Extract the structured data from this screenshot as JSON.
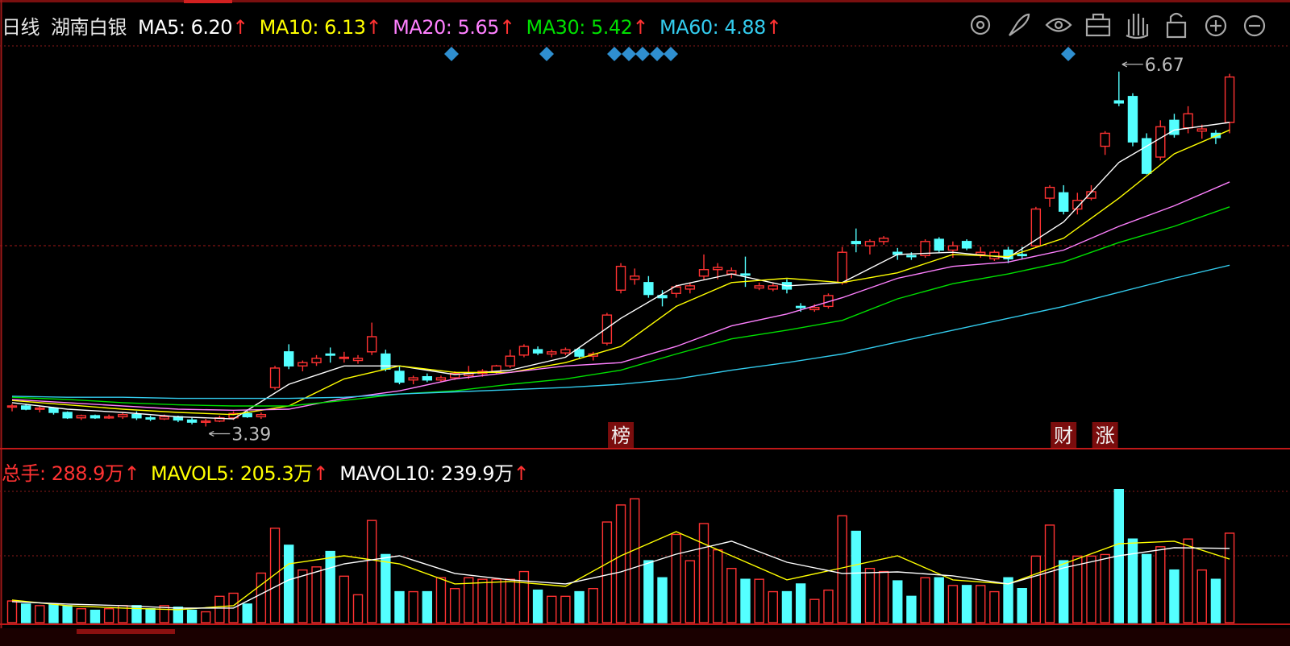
{
  "header": {
    "period": "日线",
    "name": "湖南白银"
  },
  "chart_data": [
    {
      "type": "candlestick",
      "ylim": [
        3.2,
        6.9
      ],
      "up_color": "#ff3232",
      "down_color": "#54ffff",
      "open": [
        3.57,
        3.58,
        3.55,
        3.56,
        3.52,
        3.47,
        3.49,
        3.47,
        3.48,
        3.5,
        3.47,
        3.46,
        3.48,
        3.45,
        3.43,
        3.44,
        3.47,
        3.51,
        3.48,
        3.75,
        4.08,
        3.95,
        3.98,
        4.06,
        4.03,
        4.0,
        4.08,
        4.06,
        3.9,
        3.82,
        3.85,
        3.82,
        3.84,
        3.86,
        3.88,
        3.9,
        3.95,
        4.05,
        4.1,
        4.06,
        4.07,
        4.1,
        4.04,
        4.16,
        4.65,
        4.75,
        4.72,
        4.6,
        4.62,
        4.66,
        4.78,
        4.84,
        4.8,
        4.8,
        4.67,
        4.66,
        4.72,
        4.5,
        4.47,
        4.5,
        4.72,
        5.1,
        5.06,
        5.1,
        5.0,
        4.97,
        4.97,
        5.12,
        5.02,
        5.1,
        4.98,
        4.94,
        5.02,
        4.98,
        5.06,
        5.5,
        5.55,
        5.4,
        5.5,
        5.98,
        6.4,
        6.44,
        6.05,
        5.88,
        6.22,
        6.15,
        6.12,
        6.1,
        6.2
      ],
      "high": [
        3.6,
        3.6,
        3.58,
        3.57,
        3.53,
        3.5,
        3.5,
        3.5,
        3.52,
        3.53,
        3.49,
        3.5,
        3.49,
        3.47,
        3.46,
        3.49,
        3.53,
        3.55,
        3.52,
        3.95,
        4.15,
        4.0,
        4.05,
        4.12,
        4.08,
        4.05,
        4.35,
        4.1,
        3.95,
        3.86,
        3.88,
        3.86,
        3.9,
        3.95,
        3.92,
        3.96,
        4.1,
        4.15,
        4.13,
        4.1,
        4.12,
        4.12,
        4.08,
        4.44,
        4.9,
        4.85,
        4.78,
        4.65,
        4.7,
        4.72,
        4.98,
        4.9,
        4.86,
        4.96,
        4.72,
        4.72,
        4.75,
        4.53,
        4.52,
        4.62,
        5.05,
        5.22,
        5.12,
        5.15,
        5.04,
        5.0,
        5.12,
        5.14,
        5.1,
        5.12,
        5.05,
        5.02,
        5.05,
        5.05,
        5.42,
        5.62,
        5.62,
        5.55,
        5.62,
        6.12,
        6.67,
        6.47,
        6.1,
        6.22,
        6.28,
        6.35,
        6.18,
        6.13,
        6.65
      ],
      "low": [
        3.53,
        3.54,
        3.52,
        3.5,
        3.46,
        3.45,
        3.46,
        3.46,
        3.46,
        3.45,
        3.44,
        3.45,
        3.43,
        3.41,
        3.39,
        3.43,
        3.45,
        3.47,
        3.46,
        3.73,
        3.92,
        3.9,
        3.95,
        3.98,
        3.98,
        3.97,
        4.05,
        3.9,
        3.78,
        3.78,
        3.8,
        3.8,
        3.82,
        3.83,
        3.85,
        3.88,
        3.93,
        4.03,
        4.05,
        4.03,
        4.05,
        4.02,
        4.0,
        4.14,
        4.62,
        4.7,
        4.58,
        4.5,
        4.58,
        4.62,
        4.75,
        4.75,
        4.76,
        4.68,
        4.65,
        4.64,
        4.62,
        4.45,
        4.45,
        4.48,
        4.7,
        5.0,
        4.98,
        5.07,
        4.93,
        4.93,
        4.95,
        5.0,
        4.95,
        5.02,
        4.95,
        4.92,
        4.9,
        4.94,
        5.04,
        5.42,
        5.35,
        5.35,
        5.48,
        5.9,
        6.35,
        5.98,
        5.72,
        5.85,
        6.06,
        6.1,
        6.05,
        6.0,
        6.1
      ],
      "close": [
        3.58,
        3.55,
        3.56,
        3.52,
        3.47,
        3.49,
        3.47,
        3.48,
        3.5,
        3.47,
        3.46,
        3.48,
        3.45,
        3.43,
        3.44,
        3.47,
        3.51,
        3.48,
        3.5,
        3.93,
        3.95,
        3.98,
        4.02,
        4.05,
        4.03,
        4.02,
        4.22,
        3.92,
        3.8,
        3.84,
        3.82,
        3.84,
        3.88,
        3.88,
        3.9,
        3.95,
        4.04,
        4.13,
        4.07,
        4.08,
        4.1,
        4.04,
        4.06,
        4.42,
        4.87,
        4.78,
        4.61,
        4.58,
        4.68,
        4.69,
        4.84,
        4.86,
        4.83,
        4.79,
        4.69,
        4.69,
        4.66,
        4.49,
        4.49,
        4.6,
        5.0,
        5.08,
        5.1,
        5.13,
        4.98,
        4.96,
        5.1,
        5.02,
        5.06,
        5.04,
        5.0,
        5.0,
        4.94,
        4.97,
        5.4,
        5.6,
        5.38,
        5.48,
        5.56,
        6.1,
        6.38,
        6.02,
        5.73,
        6.16,
        6.09,
        6.28,
        6.14,
        6.06,
        6.62
      ],
      "high_marker": 6.67,
      "low_marker": 3.39,
      "annotations": [
        {
          "label": "榜",
          "index": 44
        },
        {
          "label": "财",
          "index": 76
        },
        {
          "label": "涨",
          "index": 79
        }
      ],
      "ma": [
        {
          "name": "MA5",
          "color": "#ffffff",
          "current": {
            "value": 6.2,
            "label": "6.20"
          },
          "trend": "↑",
          "x": [
            0,
            4,
            8,
            12,
            16,
            20,
            24,
            28,
            32,
            36,
            40,
            44,
            48,
            52,
            56,
            60,
            64,
            68,
            72,
            76,
            80,
            84,
            88
          ],
          "values": [
            3.61,
            3.55,
            3.52,
            3.48,
            3.46,
            3.78,
            3.95,
            3.95,
            3.87,
            3.91,
            4.03,
            4.39,
            4.69,
            4.8,
            4.69,
            4.72,
            4.98,
            5.0,
            4.95,
            5.28,
            5.83,
            6.13,
            6.2
          ]
        },
        {
          "name": "MA10",
          "color": "#ffff00",
          "current": {
            "value": 6.13,
            "label": "6.13"
          },
          "trend": "↑",
          "x": [
            0,
            4,
            8,
            12,
            16,
            20,
            24,
            28,
            32,
            36,
            40,
            44,
            48,
            52,
            56,
            60,
            64,
            68,
            72,
            76,
            80,
            84,
            88
          ],
          "values": [
            3.63,
            3.59,
            3.55,
            3.52,
            3.5,
            3.58,
            3.83,
            3.95,
            3.89,
            3.89,
            3.98,
            4.13,
            4.5,
            4.72,
            4.76,
            4.72,
            4.81,
            4.98,
            4.96,
            5.13,
            5.5,
            5.91,
            6.13
          ]
        },
        {
          "name": "MA20",
          "color": "#ff80ff",
          "current": {
            "value": 5.65,
            "label": "5.65"
          },
          "trend": "↑",
          "x": [
            0,
            4,
            8,
            12,
            16,
            20,
            24,
            28,
            32,
            36,
            40,
            44,
            48,
            52,
            56,
            60,
            64,
            68,
            72,
            76,
            80,
            84,
            88
          ],
          "values": [
            3.64,
            3.61,
            3.58,
            3.55,
            3.54,
            3.55,
            3.65,
            3.72,
            3.83,
            3.89,
            3.95,
            3.98,
            4.13,
            4.32,
            4.43,
            4.58,
            4.76,
            4.87,
            4.91,
            5.02,
            5.24,
            5.43,
            5.65
          ]
        },
        {
          "name": "MA30",
          "color": "#00e000",
          "current": {
            "value": 5.42,
            "label": "5.42"
          },
          "trend": "↑",
          "x": [
            0,
            4,
            8,
            12,
            16,
            20,
            24,
            28,
            32,
            36,
            40,
            44,
            48,
            52,
            56,
            60,
            64,
            68,
            72,
            76,
            80,
            84,
            88
          ],
          "values": [
            3.66,
            3.64,
            3.61,
            3.59,
            3.58,
            3.58,
            3.63,
            3.69,
            3.72,
            3.78,
            3.83,
            3.91,
            4.06,
            4.2,
            4.28,
            4.37,
            4.57,
            4.71,
            4.8,
            4.91,
            5.09,
            5.24,
            5.42
          ]
        },
        {
          "name": "MA60",
          "color": "#33ccee",
          "current": {
            "value": 4.88,
            "label": "4.88"
          },
          "trend": "↑",
          "x": [
            0,
            4,
            8,
            12,
            16,
            20,
            24,
            28,
            32,
            36,
            40,
            44,
            48,
            52,
            56,
            60,
            64,
            68,
            72,
            76,
            80,
            84,
            88
          ],
          "values": [
            3.67,
            3.66,
            3.66,
            3.65,
            3.65,
            3.65,
            3.66,
            3.69,
            3.71,
            3.73,
            3.75,
            3.78,
            3.83,
            3.91,
            3.98,
            4.06,
            4.17,
            4.28,
            4.39,
            4.5,
            4.63,
            4.76,
            4.88
          ]
        }
      ]
    },
    {
      "type": "volume",
      "ylim": [
        0,
        450
      ],
      "label": "总手",
      "color": "#ff3232",
      "current": {
        "value": 288.9,
        "label": "288.9万"
      },
      "trend": "↑",
      "values": [
        70,
        60,
        55,
        60,
        55,
        45,
        40,
        45,
        55,
        55,
        45,
        55,
        50,
        40,
        35,
        85,
        95,
        60,
        160,
        305,
        250,
        170,
        180,
        230,
        150,
        90,
        330,
        220,
        100,
        100,
        100,
        145,
        110,
        145,
        140,
        140,
        140,
        165,
        105,
        85,
        85,
        100,
        110,
        325,
        380,
        400,
        200,
        145,
        285,
        200,
        320,
        235,
        175,
        140,
        140,
        100,
        100,
        125,
        75,
        105,
        345,
        295,
        175,
        165,
        135,
        85,
        145,
        145,
        120,
        120,
        120,
        100,
        145,
        110,
        215,
        315,
        200,
        215,
        215,
        220,
        430,
        270,
        220,
        245,
        170,
        270,
        170,
        140,
        288.9
      ],
      "series": [
        {
          "name": "MAVOL5",
          "color": "#ffff00",
          "current": {
            "value": 205.3,
            "label": "205.3万"
          },
          "trend": "↑",
          "x": [
            0,
            4,
            8,
            12,
            16,
            20,
            24,
            28,
            32,
            36,
            40,
            44,
            48,
            52,
            56,
            60,
            64,
            68,
            72,
            76,
            80,
            84,
            88
          ],
          "values": [
            73,
            55,
            47,
            42,
            55,
            190,
            216,
            190,
            125,
            133,
            117,
            216,
            294,
            216,
            138,
            177,
            216,
            138,
            125,
            190,
            255,
            263,
            205.3
          ]
        },
        {
          "name": "MAVOL10",
          "color": "#ffffff",
          "current": {
            "value": 239.9,
            "label": "239.9万"
          },
          "trend": "↑",
          "x": [
            0,
            4,
            8,
            12,
            16,
            20,
            24,
            28,
            32,
            36,
            40,
            44,
            48,
            52,
            56,
            60,
            64,
            68,
            72,
            76,
            80,
            84,
            88
          ],
          "values": [
            68,
            60,
            55,
            47,
            47,
            138,
            190,
            216,
            159,
            138,
            125,
            164,
            221,
            263,
            195,
            159,
            164,
            151,
            125,
            177,
            216,
            242,
            239.9
          ]
        }
      ]
    }
  ]
}
